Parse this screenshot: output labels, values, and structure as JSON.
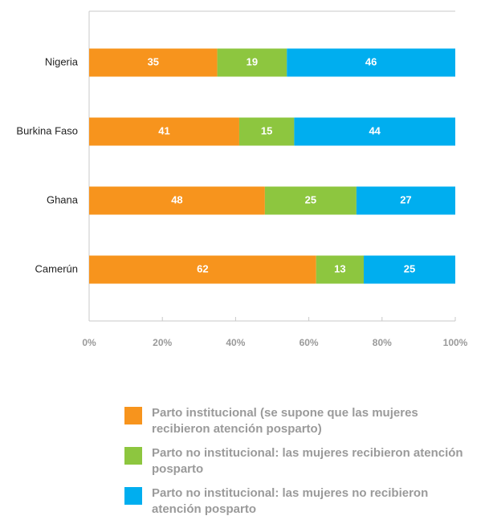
{
  "chart_data": {
    "type": "stacked_bar_horizontal",
    "categories": [
      "Nigeria",
      "Burkina Faso",
      "Ghana",
      "Camerún"
    ],
    "series": [
      {
        "name": "Parto institucional (se supone que las mujeres recibieron atención posparto)",
        "color": "#f7941d",
        "values": [
          35,
          41,
          48,
          62
        ]
      },
      {
        "name": "Parto no institucional: las mujeres recibieron atención posparto",
        "color": "#8dc63f",
        "values": [
          19,
          15,
          25,
          13
        ]
      },
      {
        "name": "Parto no institucional: las mujeres no recibieron atención posparto",
        "color": "#00aeef",
        "values": [
          46,
          44,
          27,
          25
        ]
      }
    ],
    "xlim": [
      0,
      100
    ],
    "xticks": [
      {
        "value": 0,
        "label": "0%"
      },
      {
        "value": 20,
        "label": "20%"
      },
      {
        "value": 40,
        "label": "40%"
      },
      {
        "value": 60,
        "label": "60%"
      },
      {
        "value": 80,
        "label": "80%"
      },
      {
        "value": 100,
        "label": "100%"
      }
    ]
  }
}
